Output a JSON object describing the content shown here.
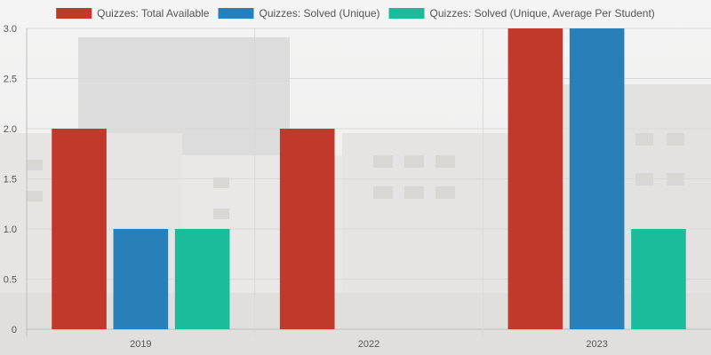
{
  "chart_data": {
    "type": "bar",
    "title": "",
    "xlabel": "",
    "ylabel": "",
    "categories": [
      "2019",
      "2022",
      "2023"
    ],
    "series": [
      {
        "name": "Quizzes: Total Available",
        "color": "#c0392b",
        "values": [
          2,
          2,
          3
        ]
      },
      {
        "name": "Quizzes: Solved (Unique)",
        "color": "#2980b9",
        "values": [
          1,
          0,
          3
        ]
      },
      {
        "name": "Quizzes: Solved (Unique, Average Per Student)",
        "color": "#1abc9c",
        "values": [
          1,
          0,
          1
        ]
      }
    ],
    "ylim": [
      0,
      3
    ],
    "yticks": [
      "0",
      "0.5",
      "1.0",
      "1.5",
      "2.0",
      "2.5",
      "3.0"
    ],
    "grid": true,
    "legend_position": "top"
  }
}
